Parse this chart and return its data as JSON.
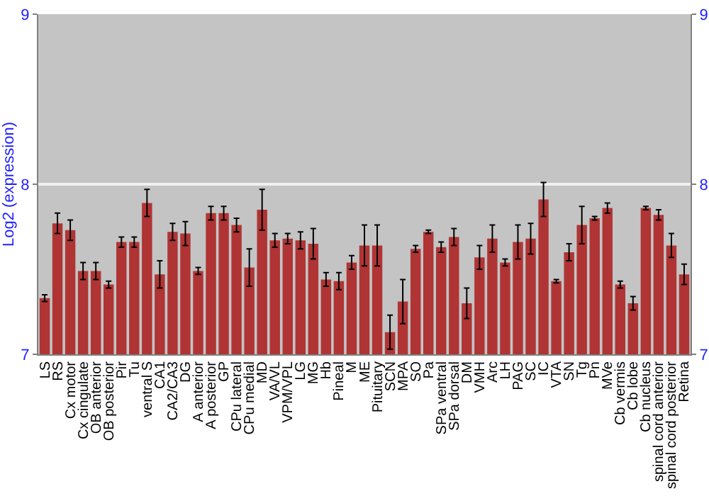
{
  "chart_data": {
    "type": "bar",
    "ylabel": "Log2 (expression)",
    "categories": [
      "LS",
      "RS",
      "Cx motor",
      "Cx cingulate",
      "OB anterior",
      "OB posterior",
      "Pir",
      "Tu",
      "ventral S",
      "CA1",
      "CA2/CA3",
      "DG",
      "A anterior",
      "A posterior",
      "GP",
      "CPu lateral",
      "CPu medial",
      "MD",
      "VA/VL",
      "VPM/VPL",
      "LG",
      "MG",
      "Hb",
      "Pineal",
      "M",
      "ME",
      "Pituitary",
      "SCN",
      "MPA",
      "SO",
      "Pa",
      "SPa ventral",
      "SPa dorsal",
      "DM",
      "VMH",
      "Arc",
      "LH",
      "PAG",
      "SC",
      "IC",
      "VTA",
      "SN",
      "Tg",
      "Pn",
      "MVe",
      "Cb vermis",
      "Cb lobe",
      "Cb nucleus",
      "spinal cord anterior",
      "spinal cord posterior",
      "Retina"
    ],
    "values": [
      7.33,
      7.77,
      7.73,
      7.49,
      7.49,
      7.41,
      7.66,
      7.66,
      7.89,
      7.47,
      7.72,
      7.71,
      7.49,
      7.83,
      7.83,
      7.76,
      7.51,
      7.85,
      7.67,
      7.68,
      7.67,
      7.65,
      7.44,
      7.43,
      7.54,
      7.64,
      7.64,
      7.13,
      7.31,
      7.62,
      7.72,
      7.63,
      7.69,
      7.3,
      7.57,
      7.68,
      7.54,
      7.66,
      7.68,
      7.91,
      7.43,
      7.6,
      7.76,
      7.8,
      7.86,
      7.41,
      7.3,
      7.86,
      7.82,
      7.64,
      7.47
    ],
    "errors": [
      0.02,
      0.06,
      0.06,
      0.05,
      0.05,
      0.02,
      0.03,
      0.03,
      0.08,
      0.08,
      0.05,
      0.07,
      0.02,
      0.04,
      0.04,
      0.04,
      0.11,
      0.12,
      0.04,
      0.03,
      0.05,
      0.09,
      0.04,
      0.05,
      0.04,
      0.12,
      0.12,
      0.1,
      0.13,
      0.02,
      0.01,
      0.03,
      0.05,
      0.09,
      0.07,
      0.08,
      0.02,
      0.1,
      0.09,
      0.1,
      0.01,
      0.05,
      0.11,
      0.01,
      0.03,
      0.02,
      0.04,
      0.01,
      0.03,
      0.07,
      0.06
    ],
    "color": "#b03434",
    "ylim": [
      7,
      9
    ],
    "yticks": [
      7,
      8,
      9
    ],
    "y2lim": [
      7,
      9
    ],
    "y2ticks": [
      7,
      8,
      9
    ],
    "grid": "y"
  }
}
